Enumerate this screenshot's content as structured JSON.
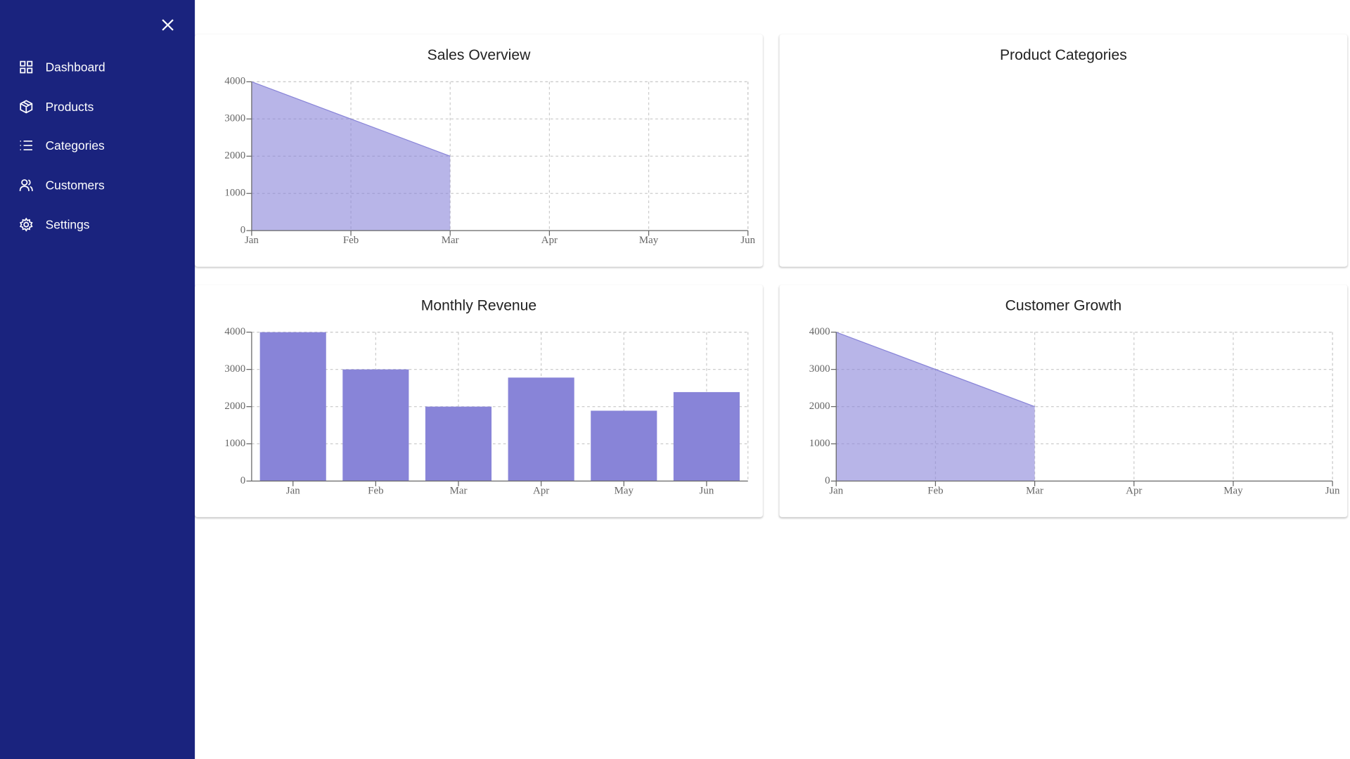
{
  "sidebar": {
    "items": [
      "Dashboard",
      "Products",
      "Categories",
      "Customers",
      "Settings"
    ]
  },
  "empty_card": {
    "title": "Product Categories"
  },
  "chart_data": [
    {
      "type": "area",
      "title": "Sales Overview",
      "categories": [
        "Jan",
        "Feb",
        "Mar",
        "Apr",
        "May",
        "Jun"
      ],
      "values": [
        4000,
        3000,
        2000,
        null,
        null,
        null
      ],
      "color": "#8884d8",
      "ylim": [
        0,
        4000
      ],
      "yticks": [
        0,
        1000,
        2000,
        3000,
        4000
      ],
      "grid": true
    },
    {
      "type": "bar",
      "title": "Monthly Revenue",
      "categories": [
        "Jan",
        "Feb",
        "Mar",
        "Apr",
        "May",
        "Jun"
      ],
      "values": [
        4000,
        3000,
        2000,
        2780,
        1890,
        2390
      ],
      "color": "#8884d8",
      "ylim": [
        0,
        4000
      ],
      "yticks": [
        0,
        1000,
        2000,
        3000,
        4000
      ],
      "grid": true
    },
    {
      "type": "area",
      "title": "Customer Growth",
      "categories": [
        "Jan",
        "Feb",
        "Mar",
        "Apr",
        "May",
        "Jun"
      ],
      "values": [
        4000,
        3000,
        2000,
        null,
        null,
        null
      ],
      "color": "#8884d8",
      "ylim": [
        0,
        4000
      ],
      "yticks": [
        0,
        1000,
        2000,
        3000,
        4000
      ],
      "grid": true
    }
  ]
}
